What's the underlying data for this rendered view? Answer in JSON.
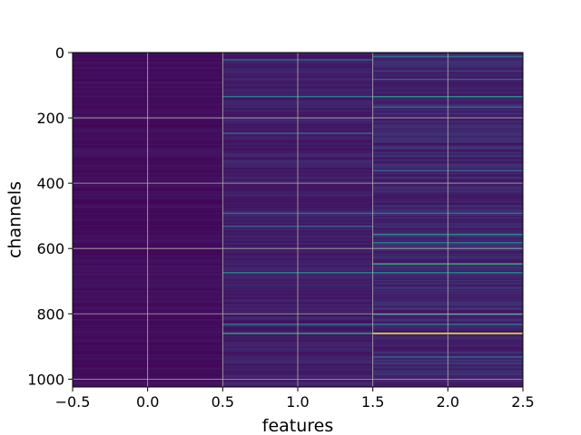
{
  "chart_data": {
    "type": "heatmap",
    "title": "",
    "xlabel": "features",
    "ylabel": "channels",
    "xlim": [
      -0.5,
      2.5
    ],
    "ylim": [
      1024,
      0
    ],
    "y_inverted": true,
    "grid": true,
    "colormap": "viridis",
    "columns": 3,
    "rows": 1024,
    "x_ticks": [
      -0.5,
      0.0,
      0.5,
      1.0,
      1.5,
      2.0,
      2.5
    ],
    "x_tick_labels": [
      "−0.5",
      "0.0",
      "0.5",
      "1.0",
      "1.5",
      "2.0",
      "2.5"
    ],
    "y_ticks": [
      0,
      200,
      400,
      600,
      800,
      1000
    ],
    "y_tick_labels": [
      "0",
      "200",
      "400",
      "600",
      "800",
      "1000"
    ],
    "column_base_values": [
      0.04,
      0.09,
      0.11
    ],
    "bright_bands": [
      {
        "column": 1,
        "row": 20,
        "value": 0.3
      },
      {
        "column": 1,
        "row": 133,
        "value": 0.4
      },
      {
        "column": 1,
        "row": 245,
        "value": 0.3
      },
      {
        "column": 1,
        "row": 490,
        "value": 0.35
      },
      {
        "column": 1,
        "row": 530,
        "value": 0.3
      },
      {
        "column": 1,
        "row": 672,
        "value": 0.45
      },
      {
        "column": 1,
        "row": 830,
        "value": 0.4
      },
      {
        "column": 1,
        "row": 858,
        "value": 0.55
      },
      {
        "column": 2,
        "row": 10,
        "value": 0.35
      },
      {
        "column": 2,
        "row": 80,
        "value": 0.3
      },
      {
        "column": 2,
        "row": 133,
        "value": 0.5
      },
      {
        "column": 2,
        "row": 165,
        "value": 0.3
      },
      {
        "column": 2,
        "row": 360,
        "value": 0.3
      },
      {
        "column": 2,
        "row": 490,
        "value": 0.4
      },
      {
        "column": 2,
        "row": 555,
        "value": 0.45
      },
      {
        "column": 2,
        "row": 580,
        "value": 0.4
      },
      {
        "column": 2,
        "row": 645,
        "value": 0.6
      },
      {
        "column": 2,
        "row": 672,
        "value": 0.45
      },
      {
        "column": 2,
        "row": 800,
        "value": 0.35
      },
      {
        "column": 2,
        "row": 830,
        "value": 0.4
      },
      {
        "column": 2,
        "row": 858,
        "value": 1.0
      },
      {
        "column": 2,
        "row": 930,
        "value": 0.3
      }
    ]
  }
}
